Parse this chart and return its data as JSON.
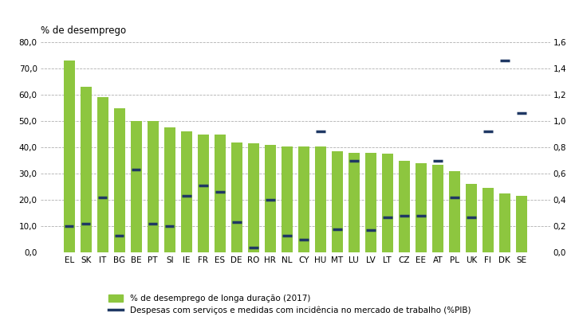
{
  "categories": [
    "EL",
    "SK",
    "IT",
    "BG",
    "BE",
    "PT",
    "SI",
    "IE",
    "FR",
    "ES",
    "DE",
    "RO",
    "HR",
    "NL",
    "CY",
    "HU",
    "MT",
    "LU",
    "LV",
    "LT",
    "CZ",
    "EE",
    "AT",
    "PL",
    "UK",
    "FI",
    "DK",
    "SE"
  ],
  "bar_values": [
    73.0,
    63.0,
    59.0,
    55.0,
    50.0,
    50.0,
    47.5,
    46.0,
    45.0,
    45.0,
    42.0,
    41.5,
    41.0,
    40.5,
    40.5,
    40.5,
    38.5,
    38.0,
    38.0,
    37.5,
    35.0,
    34.0,
    33.5,
    31.0,
    26.0,
    24.5,
    22.5,
    21.5
  ],
  "line_values": [
    0.2,
    0.22,
    0.42,
    0.13,
    0.63,
    0.22,
    0.2,
    0.43,
    0.51,
    0.46,
    0.23,
    0.04,
    0.4,
    0.13,
    0.1,
    0.92,
    0.18,
    0.7,
    0.17,
    0.27,
    0.28,
    0.28,
    0.7,
    0.42,
    0.27,
    0.92,
    1.46,
    1.06
  ],
  "bar_color": "#8DC63F",
  "line_color": "#1F3864",
  "title": "% de desemprego",
  "ylim_left": [
    0,
    80
  ],
  "ylim_right": [
    0,
    1.6
  ],
  "yticks_left": [
    0,
    10,
    20,
    30,
    40,
    50,
    60,
    70,
    80
  ],
  "yticks_right": [
    0.0,
    0.2,
    0.4,
    0.6,
    0.8,
    1.0,
    1.2,
    1.4,
    1.6
  ],
  "ytick_labels_left": [
    "0,0",
    "10,0",
    "20,0",
    "30,0",
    "40,0",
    "50,0",
    "60,0",
    "70,0",
    "80,0"
  ],
  "ytick_labels_right": [
    "0,0",
    "0,2",
    "0,4",
    "0,6",
    "0,8",
    "1,0",
    "1,2",
    "1,4",
    "1,6"
  ],
  "legend_bar": "% de desemprego de longa duração (2017)",
  "legend_line": "Despesas com serviços e medidas com incidência no mercado de trabalho (%PIB)",
  "background_color": "#ffffff",
  "grid_color": "#b0b0b0"
}
